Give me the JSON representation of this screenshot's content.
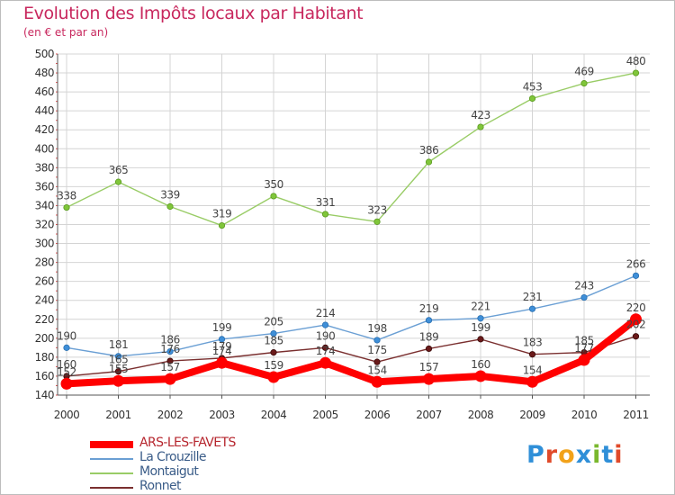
{
  "page": {
    "title": "Evolution des Impôts locaux par Habitant",
    "subtitle": "(en € et par an)"
  },
  "logo": {
    "text": "Proxiti",
    "letter_colors": [
      "#2f8fd8",
      "#e04a2a",
      "#f2a21a",
      "#2f8fd8",
      "#7ab82e",
      "#2f8fd8",
      "#e04a2a"
    ]
  },
  "chart_data": {
    "type": "line",
    "x": [
      "2000",
      "2001",
      "2002",
      "2003",
      "2004",
      "2005",
      "2006",
      "2007",
      "2008",
      "2009",
      "2010",
      "2011"
    ],
    "ylim": [
      140,
      500
    ],
    "yticks": [
      140,
      160,
      180,
      200,
      220,
      240,
      260,
      280,
      300,
      320,
      340,
      360,
      380,
      400,
      420,
      440,
      460,
      480,
      500
    ],
    "grid": true,
    "legend_position": "bottom-left",
    "series": [
      {
        "name": "ARS-LES-FAVETS",
        "color": "#ff0000",
        "values": [
          152,
          155,
          157,
          174,
          159,
          174,
          154,
          157,
          160,
          154,
          177,
          220
        ],
        "labels": [
          "152",
          "155",
          "157",
          "174",
          "159",
          "174",
          "154",
          "157",
          "160",
          "154",
          "177",
          "220"
        ]
      },
      {
        "name": "La Crouzille",
        "color": "#6a9fd4",
        "values": [
          190,
          181,
          186,
          199,
          205,
          214,
          198,
          219,
          221,
          231,
          243,
          266
        ],
        "labels": [
          "190",
          "181",
          "186",
          "199",
          "205",
          "214",
          "198",
          "219",
          "221",
          "231",
          "243",
          "266"
        ]
      },
      {
        "name": "Montaigut",
        "color": "#99cc66",
        "values": [
          338,
          365,
          339,
          319,
          350,
          331,
          323,
          386,
          423,
          453,
          469,
          480
        ],
        "labels": [
          "338",
          "365",
          "339",
          "319",
          "350",
          "331",
          "323",
          "386",
          "423",
          "453",
          "469",
          "480"
        ]
      },
      {
        "name": "Ronnet",
        "color": "#7a2f2f",
        "values": [
          160,
          165,
          176,
          179,
          185,
          190,
          175,
          189,
          199,
          183,
          185,
          202
        ],
        "labels": [
          "160",
          "165",
          "176",
          "179",
          "185",
          "190",
          "175",
          "189",
          "199",
          "183",
          "185",
          "202"
        ]
      }
    ]
  }
}
